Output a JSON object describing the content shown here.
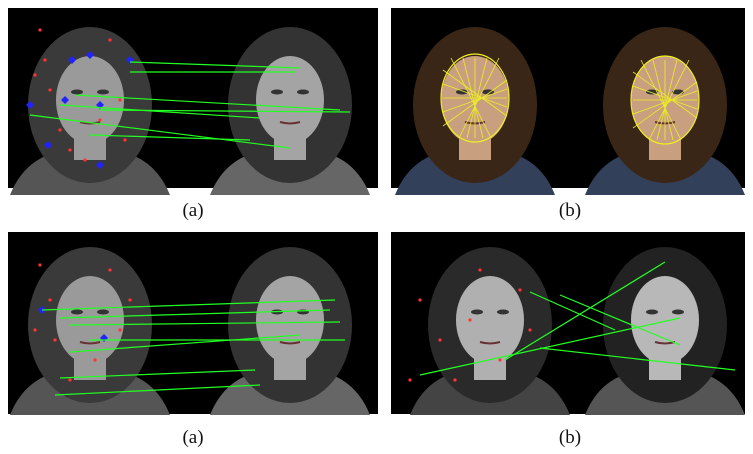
{
  "panels": [
    {
      "caption": "(a)"
    },
    {
      "caption": "(b)"
    },
    {
      "caption": "(a)"
    },
    {
      "caption": "(b)"
    }
  ]
}
